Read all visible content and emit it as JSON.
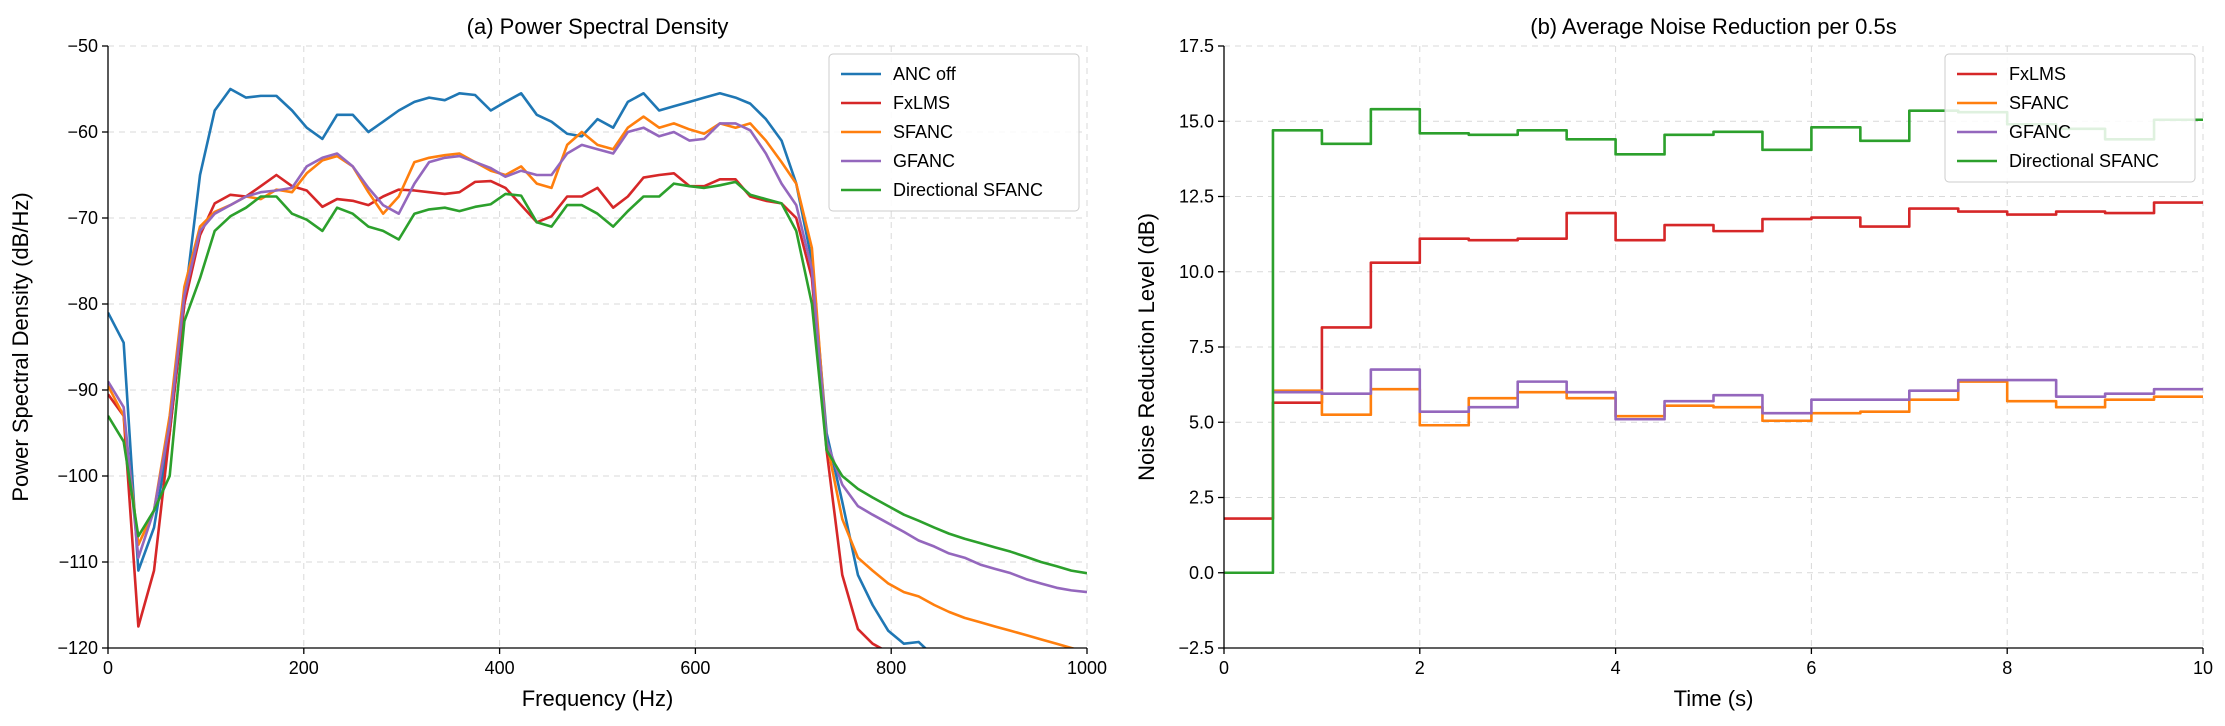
{
  "chart_data": [
    {
      "type": "line",
      "title": "(a) Power Spectral Density",
      "xlabel": "Frequency (Hz)",
      "ylabel": "Power Spectral Density (dB/Hz)",
      "xlim": [
        0,
        1000
      ],
      "ylim": [
        -120,
        -50
      ],
      "xticks": [
        0,
        200,
        400,
        600,
        800,
        1000
      ],
      "xtick_labels": [
        "0",
        "200",
        "400",
        "600",
        "800",
        "1000"
      ],
      "yticks": [
        -120,
        -110,
        -100,
        -90,
        -80,
        -70,
        -60,
        -50
      ],
      "ytick_labels": [
        "−120",
        "−110",
        "−100",
        "−90",
        "−80",
        "−70",
        "−60",
        "−50"
      ],
      "grid": true,
      "legend_position": "top-right",
      "series": [
        {
          "name": "ANC off",
          "color": "#1f77b4",
          "x": [
            0,
            16,
            31,
            47,
            63,
            78,
            94,
            109,
            125,
            141,
            156,
            172,
            188,
            203,
            219,
            234,
            250,
            266,
            281,
            297,
            313,
            328,
            344,
            359,
            375,
            391,
            406,
            422,
            438,
            453,
            469,
            484,
            500,
            516,
            531,
            547,
            563,
            578,
            594,
            609,
            625,
            641,
            656,
            672,
            688,
            703,
            719,
            734,
            750,
            766,
            781,
            797,
            813,
            828,
            844
          ],
          "y": [
            -81,
            -84.5,
            -111,
            -106,
            -95,
            -80,
            -65,
            -57.5,
            -55,
            -56,
            -55.8,
            -55.8,
            -57.5,
            -59.5,
            -60.8,
            -58,
            -58,
            -60,
            -58.8,
            -57.5,
            -56.5,
            -56,
            -56.3,
            -55.5,
            -55.7,
            -57.5,
            -56.5,
            -55.5,
            -58,
            -58.8,
            -60.2,
            -60.5,
            -58.5,
            -59.5,
            -56.5,
            -55.5,
            -57.5,
            -57,
            -56.5,
            -56,
            -55.5,
            -56,
            -56.7,
            -58.5,
            -61,
            -66,
            -75,
            -95,
            -103,
            -111.5,
            -115,
            -118,
            -119.5,
            -119.3,
            -121
          ]
        },
        {
          "name": "FxLMS",
          "color": "#d62728",
          "x": [
            0,
            16,
            31,
            47,
            63,
            78,
            94,
            109,
            125,
            141,
            156,
            172,
            188,
            203,
            219,
            234,
            250,
            266,
            281,
            297,
            313,
            328,
            344,
            359,
            375,
            391,
            406,
            422,
            438,
            453,
            469,
            484,
            500,
            516,
            531,
            547,
            563,
            578,
            594,
            609,
            625,
            641,
            656,
            672,
            688,
            703,
            719,
            734,
            750,
            766,
            781,
            797,
            805
          ],
          "y": [
            -90.5,
            -93,
            -117.5,
            -111,
            -95,
            -80,
            -72,
            -68.3,
            -67.3,
            -67.5,
            -66.3,
            -65,
            -66.3,
            -66.8,
            -68.7,
            -67.8,
            -68,
            -68.5,
            -67.5,
            -66.7,
            -66.8,
            -67,
            -67.2,
            -67,
            -65.8,
            -65.7,
            -66.5,
            -68.5,
            -70.5,
            -69.8,
            -67.5,
            -67.5,
            -66.5,
            -68.8,
            -67.5,
            -65.3,
            -65,
            -64.8,
            -66.3,
            -66.3,
            -65.5,
            -65.5,
            -67.5,
            -68,
            -68.3,
            -70,
            -77,
            -97,
            -111.5,
            -117.8,
            -119.5,
            -120.5,
            -121
          ]
        },
        {
          "name": "SFANC",
          "color": "#ff7f0e",
          "x": [
            0,
            16,
            31,
            47,
            63,
            78,
            94,
            109,
            125,
            141,
            156,
            172,
            188,
            203,
            219,
            234,
            250,
            266,
            281,
            297,
            313,
            328,
            344,
            359,
            375,
            391,
            406,
            422,
            438,
            453,
            469,
            484,
            500,
            516,
            531,
            547,
            563,
            578,
            594,
            609,
            625,
            641,
            656,
            672,
            688,
            703,
            719,
            734,
            750,
            766,
            781,
            797,
            813,
            828,
            844,
            859,
            875,
            891,
            906,
            922,
            938,
            953,
            969,
            984,
            1000
          ],
          "y": [
            -89.5,
            -93,
            -108,
            -104,
            -93,
            -78,
            -71,
            -69.3,
            -68.5,
            -67.5,
            -67.8,
            -66.7,
            -67,
            -64.8,
            -63.3,
            -62.8,
            -64,
            -67,
            -69.5,
            -67.5,
            -63.5,
            -63,
            -62.7,
            -62.5,
            -63.5,
            -64.5,
            -65,
            -64,
            -66,
            -66.5,
            -61.5,
            -60,
            -61.5,
            -62,
            -59.5,
            -58.2,
            -59.5,
            -59,
            -59.7,
            -60.2,
            -59,
            -59.5,
            -59,
            -61,
            -63.5,
            -66,
            -73.5,
            -96,
            -105,
            -109.5,
            -111,
            -112.5,
            -113.5,
            -114,
            -115,
            -115.8,
            -116.5,
            -117,
            -117.5,
            -118,
            -118.5,
            -119,
            -119.5,
            -120,
            -120.5
          ]
        },
        {
          "name": "GFANC",
          "color": "#9467bd",
          "x": [
            0,
            16,
            31,
            47,
            63,
            78,
            94,
            109,
            125,
            141,
            156,
            172,
            188,
            203,
            219,
            234,
            250,
            266,
            281,
            297,
            313,
            328,
            344,
            359,
            375,
            391,
            406,
            422,
            438,
            453,
            469,
            484,
            500,
            516,
            531,
            547,
            563,
            578,
            594,
            609,
            625,
            641,
            656,
            672,
            688,
            703,
            719,
            734,
            750,
            766,
            781,
            797,
            813,
            828,
            844,
            859,
            875,
            891,
            906,
            922,
            938,
            953,
            969,
            984,
            1000
          ],
          "y": [
            -89,
            -92,
            -109.5,
            -104,
            -94,
            -79,
            -71.5,
            -69.5,
            -68.5,
            -67.5,
            -67,
            -66.8,
            -66.5,
            -64,
            -63,
            -62.5,
            -64,
            -66.5,
            -68.5,
            -69.5,
            -66,
            -63.5,
            -63,
            -62.8,
            -63.5,
            -64.2,
            -65.2,
            -64.5,
            -65,
            -65,
            -62.5,
            -61.5,
            -62,
            -62.5,
            -60,
            -59.5,
            -60.5,
            -60,
            -61,
            -60.8,
            -59,
            -59,
            -59.8,
            -62.5,
            -66,
            -68.5,
            -76,
            -96,
            -101,
            -103.5,
            -104.5,
            -105.5,
            -106.5,
            -107.5,
            -108.2,
            -109,
            -109.5,
            -110.3,
            -110.8,
            -111.3,
            -112,
            -112.5,
            -113,
            -113.3,
            -113.5
          ]
        },
        {
          "name": "Directional SFANC",
          "color": "#2ca02c",
          "x": [
            0,
            16,
            31,
            47,
            63,
            78,
            94,
            109,
            125,
            141,
            156,
            172,
            188,
            203,
            219,
            234,
            250,
            266,
            281,
            297,
            313,
            328,
            344,
            359,
            375,
            391,
            406,
            422,
            438,
            453,
            469,
            484,
            500,
            516,
            531,
            547,
            563,
            578,
            594,
            609,
            625,
            641,
            656,
            672,
            688,
            703,
            719,
            734,
            750,
            766,
            781,
            797,
            813,
            828,
            844,
            859,
            875,
            891,
            906,
            922,
            938,
            953,
            969,
            984,
            1000
          ],
          "y": [
            -93,
            -96,
            -107,
            -104,
            -100,
            -82,
            -77,
            -71.5,
            -69.8,
            -68.8,
            -67.5,
            -67.5,
            -69.5,
            -70.2,
            -71.5,
            -68.8,
            -69.5,
            -71,
            -71.5,
            -72.5,
            -69.5,
            -69,
            -68.8,
            -69.2,
            -68.7,
            -68.4,
            -67.2,
            -67.4,
            -70.5,
            -71,
            -68.5,
            -68.5,
            -69.5,
            -71,
            -69.2,
            -67.5,
            -67.5,
            -66,
            -66.3,
            -66.5,
            -66.2,
            -65.8,
            -67.3,
            -67.8,
            -68.3,
            -71.5,
            -80,
            -97,
            -100,
            -101.5,
            -102.5,
            -103.5,
            -104.5,
            -105.2,
            -106,
            -106.7,
            -107.3,
            -107.8,
            -108.3,
            -108.8,
            -109.4,
            -110,
            -110.5,
            -111,
            -111.3
          ]
        }
      ]
    },
    {
      "type": "line",
      "step": "post",
      "title": "(b) Average Noise Reduction per 0.5s",
      "xlabel": "Time (s)",
      "ylabel": "Noise Reduction Level (dB)",
      "xlim": [
        0,
        10
      ],
      "ylim": [
        -2.5,
        17.5
      ],
      "xticks": [
        0,
        2,
        4,
        6,
        8,
        10
      ],
      "xtick_labels": [
        "0",
        "2",
        "4",
        "6",
        "8",
        "10"
      ],
      "yticks": [
        -2.5,
        0,
        2.5,
        5,
        7.5,
        10,
        12.5,
        15,
        17.5
      ],
      "ytick_labels": [
        "−2.5",
        "0.0",
        "2.5",
        "5.0",
        "7.5",
        "10.0",
        "12.5",
        "15.0",
        "17.5"
      ],
      "grid": true,
      "legend_position": "top-right",
      "x": [
        0,
        0.5,
        1,
        1.5,
        2,
        2.5,
        3,
        3.5,
        4,
        4.5,
        5,
        5.5,
        6,
        6.5,
        7,
        7.5,
        8,
        8.5,
        9,
        9.5,
        10
      ],
      "series": [
        {
          "name": "FxLMS",
          "color": "#d62728",
          "values": [
            1.8,
            5.65,
            8.15,
            10.3,
            11.1,
            11.05,
            11.1,
            11.95,
            11.05,
            11.55,
            11.35,
            11.75,
            11.8,
            11.5,
            12.1,
            12.0,
            11.9,
            12.0,
            11.95,
            12.3,
            12.3
          ]
        },
        {
          "name": "SFANC",
          "color": "#ff7f0e",
          "values": [
            null,
            6.05,
            5.25,
            6.1,
            4.9,
            5.8,
            6.0,
            5.8,
            5.2,
            5.55,
            5.5,
            5.05,
            5.3,
            5.35,
            5.75,
            6.35,
            5.7,
            5.5,
            5.75,
            5.85,
            5.85
          ]
        },
        {
          "name": "GFANC",
          "color": "#9467bd",
          "values": [
            null,
            6.0,
            5.95,
            6.75,
            5.35,
            5.5,
            6.35,
            6.0,
            5.1,
            5.7,
            5.9,
            5.3,
            5.75,
            5.75,
            6.05,
            6.4,
            6.4,
            5.85,
            5.95,
            6.1,
            6.1
          ]
        },
        {
          "name": "Directional SFANC",
          "color": "#2ca02c",
          "values": [
            0.0,
            14.7,
            14.25,
            15.4,
            14.6,
            14.55,
            14.7,
            14.4,
            13.9,
            14.55,
            14.65,
            14.05,
            14.8,
            14.35,
            15.35,
            15.3,
            14.9,
            14.75,
            14.4,
            15.05,
            15.05
          ]
        }
      ]
    }
  ]
}
